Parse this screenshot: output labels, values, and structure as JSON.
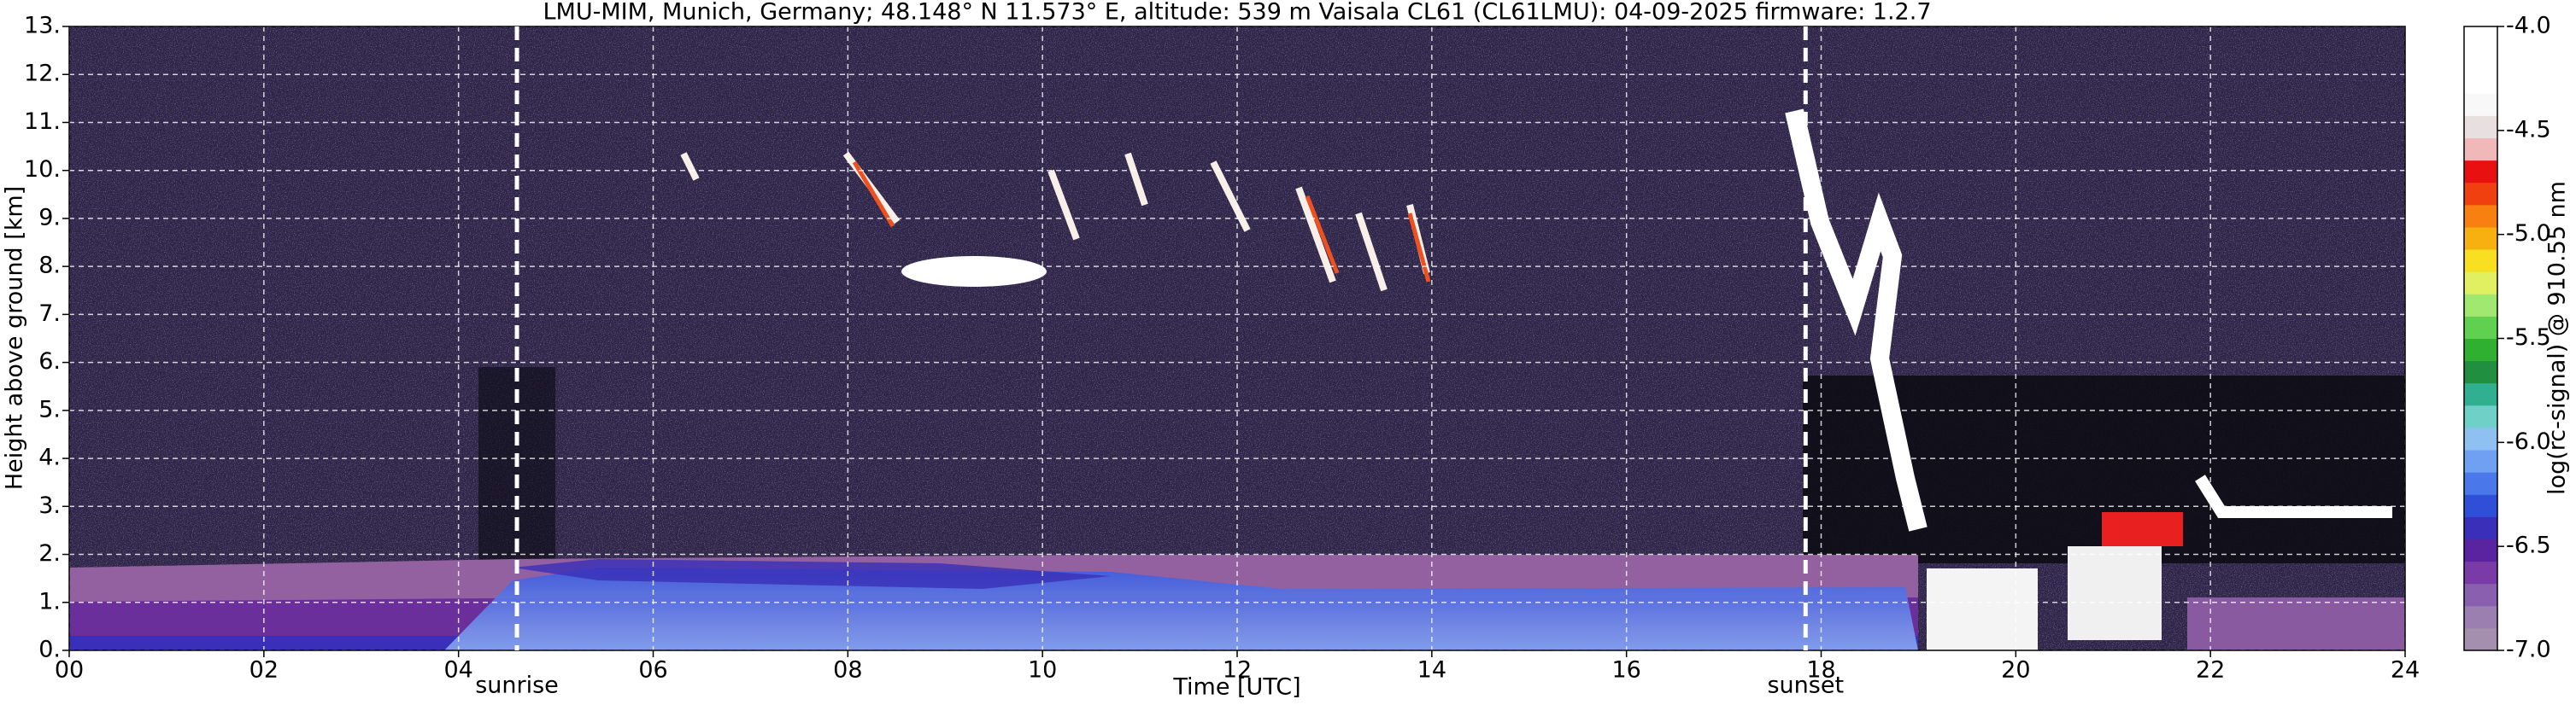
{
  "chart_data": {
    "type": "heatmap",
    "title": "LMU-MIM, Munich, Germany; 48.148° N 11.573° E, altitude: 539 m    Vaisala CL61 (CL61LMU): 04-09-2025    firmware: 1.2.7",
    "xlabel": "Time [UTC]",
    "ylabel": "Height above ground [km]",
    "xlim": [
      0,
      24
    ],
    "xticks": [
      {
        "value": 0,
        "label": "00"
      },
      {
        "value": 2,
        "label": "02"
      },
      {
        "value": 4,
        "label": "04"
      },
      {
        "value": 6,
        "label": "06"
      },
      {
        "value": 8,
        "label": "08"
      },
      10,
      12,
      14,
      16,
      18,
      20,
      22,
      24
    ],
    "ylim": [
      0,
      13
    ],
    "yticks": [
      {
        "value": 0,
        "label": "0."
      },
      {
        "value": 1,
        "label": "1."
      },
      {
        "value": 2,
        "label": "2."
      },
      {
        "value": 3,
        "label": "3."
      },
      {
        "value": 4,
        "label": "4."
      },
      {
        "value": 5,
        "label": "5."
      },
      {
        "value": 6,
        "label": "6."
      },
      {
        "value": 7,
        "label": "7."
      },
      {
        "value": 8,
        "label": "8."
      },
      {
        "value": 9,
        "label": "9."
      },
      {
        "value": 10,
        "label": "10."
      },
      {
        "value": 11,
        "label": "11."
      },
      {
        "value": 12,
        "label": "12."
      },
      {
        "value": 13,
        "label": "13."
      }
    ],
    "grid": true,
    "grid_color": "#ffffff",
    "annotations": [
      {
        "text": "sunrise",
        "x": 4.6
      },
      {
        "text": "sunset",
        "x": 17.84
      }
    ],
    "colorbar": {
      "label": "log(rc-signal) @ 910.55 nm",
      "lim": [
        -7,
        -4
      ],
      "ticks": [
        {
          "value": -7,
          "label": "-7.0"
        },
        -6.5,
        {
          "value": -6,
          "label": "-6.0"
        },
        -5.5,
        {
          "value": -5,
          "label": "-5.0"
        },
        -4.5,
        {
          "value": -4,
          "label": "-4.0"
        }
      ],
      "colors": [
        "#a48fae",
        "#9a7fb0",
        "#8a5fb0",
        "#7a3aa8",
        "#5a23a0",
        "#3a2fb8",
        "#2f4fd8",
        "#4a78ea",
        "#6fa0f2",
        "#8fc0f2",
        "#6fd0c8",
        "#30b090",
        "#208f40",
        "#30b030",
        "#60d050",
        "#a0e870",
        "#e0f060",
        "#f8e020",
        "#f8b010",
        "#f88010",
        "#f04010",
        "#e81010",
        "#f0b8b8",
        "#e8e0e0",
        "#f8f8f8",
        "#ffffff",
        "#ffffff",
        "#ffffff"
      ]
    }
  }
}
